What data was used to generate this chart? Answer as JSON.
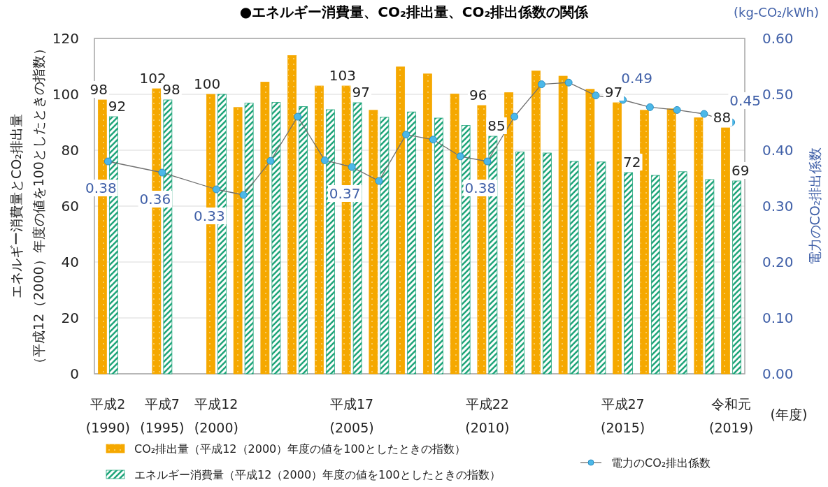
{
  "chart_data": {
    "type": "bar",
    "title": "●エネルギー消費量、CO₂排出量、CO₂排出係数の関係",
    "xlabel": "(年度)",
    "ylabel": "エネルギー消費量とCO₂排出量（平成12（2000）年度の値を100としたときの指数）",
    "y2label": "電力のCO₂排出係数",
    "annotations": [
      "(kg-CO₂/kWh)"
    ],
    "categories": [
      "平成2\n(1990)",
      null,
      "平成7\n(1995)",
      null,
      "平成12\n(2000)",
      null,
      null,
      null,
      null,
      "平成17\n(2005)",
      null,
      null,
      null,
      null,
      "平成22\n(2010)",
      null,
      null,
      null,
      null,
      "平成27\n(2015)",
      null,
      null,
      null,
      "令和元\n(2019)"
    ],
    "series": [
      {
        "name": "CO₂排出量（平成12（2000）年度の値を100としたときの指数）",
        "color": "#f5a800",
        "values": [
          98,
          null,
          102,
          null,
          100,
          95.3,
          104.4,
          113.9,
          103,
          103,
          94.3,
          109.8,
          107.3,
          100.1,
          96,
          100.6,
          108.4,
          106.5,
          101.8,
          97,
          94.3,
          94.8,
          91.6,
          88
        ],
        "value_labels": [
          "98",
          null,
          "102",
          null,
          "100",
          null,
          null,
          null,
          null,
          "103",
          null,
          null,
          null,
          null,
          "96",
          null,
          null,
          null,
          null,
          "97",
          null,
          null,
          null,
          "88"
        ]
      },
      {
        "name": "エネルギー消費量（平成12（2000）年度の値を100としたときの指数）",
        "color": "#1fa57a",
        "values": [
          92,
          null,
          98,
          null,
          100,
          96.9,
          97.1,
          95.6,
          94.5,
          97,
          91.8,
          93.7,
          91.5,
          88.9,
          85,
          79.4,
          79,
          76,
          75.8,
          72,
          71,
          72.3,
          69.5,
          69
        ],
        "value_labels": [
          "92",
          null,
          "98",
          null,
          null,
          null,
          null,
          null,
          null,
          "97",
          null,
          null,
          null,
          null,
          "85",
          null,
          null,
          null,
          null,
          "72",
          null,
          null,
          null,
          "69"
        ]
      },
      {
        "name": "電力のCO₂排出係数",
        "type": "line",
        "axis": "y2",
        "color": "#4cb8e8",
        "marker": "circle",
        "values": [
          0.38,
          null,
          0.36,
          null,
          0.33,
          0.32,
          0.381,
          0.46,
          0.382,
          0.37,
          0.345,
          0.428,
          0.419,
          0.389,
          0.38,
          0.46,
          0.518,
          0.521,
          0.498,
          0.49,
          0.477,
          0.472,
          0.465,
          0.45
        ],
        "value_labels": [
          "0.38",
          null,
          "0.36",
          null,
          "0.33",
          null,
          null,
          null,
          null,
          "0.37",
          null,
          null,
          null,
          null,
          "0.38",
          null,
          null,
          null,
          null,
          "0.49",
          null,
          null,
          null,
          "0.45"
        ]
      }
    ],
    "ylim": [
      0,
      120
    ],
    "yticks": [
      0,
      20,
      40,
      60,
      80,
      100,
      120
    ],
    "y2lim": [
      0,
      0.6
    ],
    "y2ticks": [
      {
        "value": 0,
        "label": "0.00"
      },
      {
        "value": 0.1,
        "label": "0.10"
      },
      {
        "value": 0.2,
        "label": "0.20"
      },
      {
        "value": 0.3,
        "label": "0.30"
      },
      {
        "value": 0.4,
        "label": "0.40"
      },
      {
        "value": 0.5,
        "label": "0.50"
      },
      {
        "value": 0.6,
        "label": "0.60"
      }
    ],
    "grid": "y",
    "legend": "bottom"
  }
}
